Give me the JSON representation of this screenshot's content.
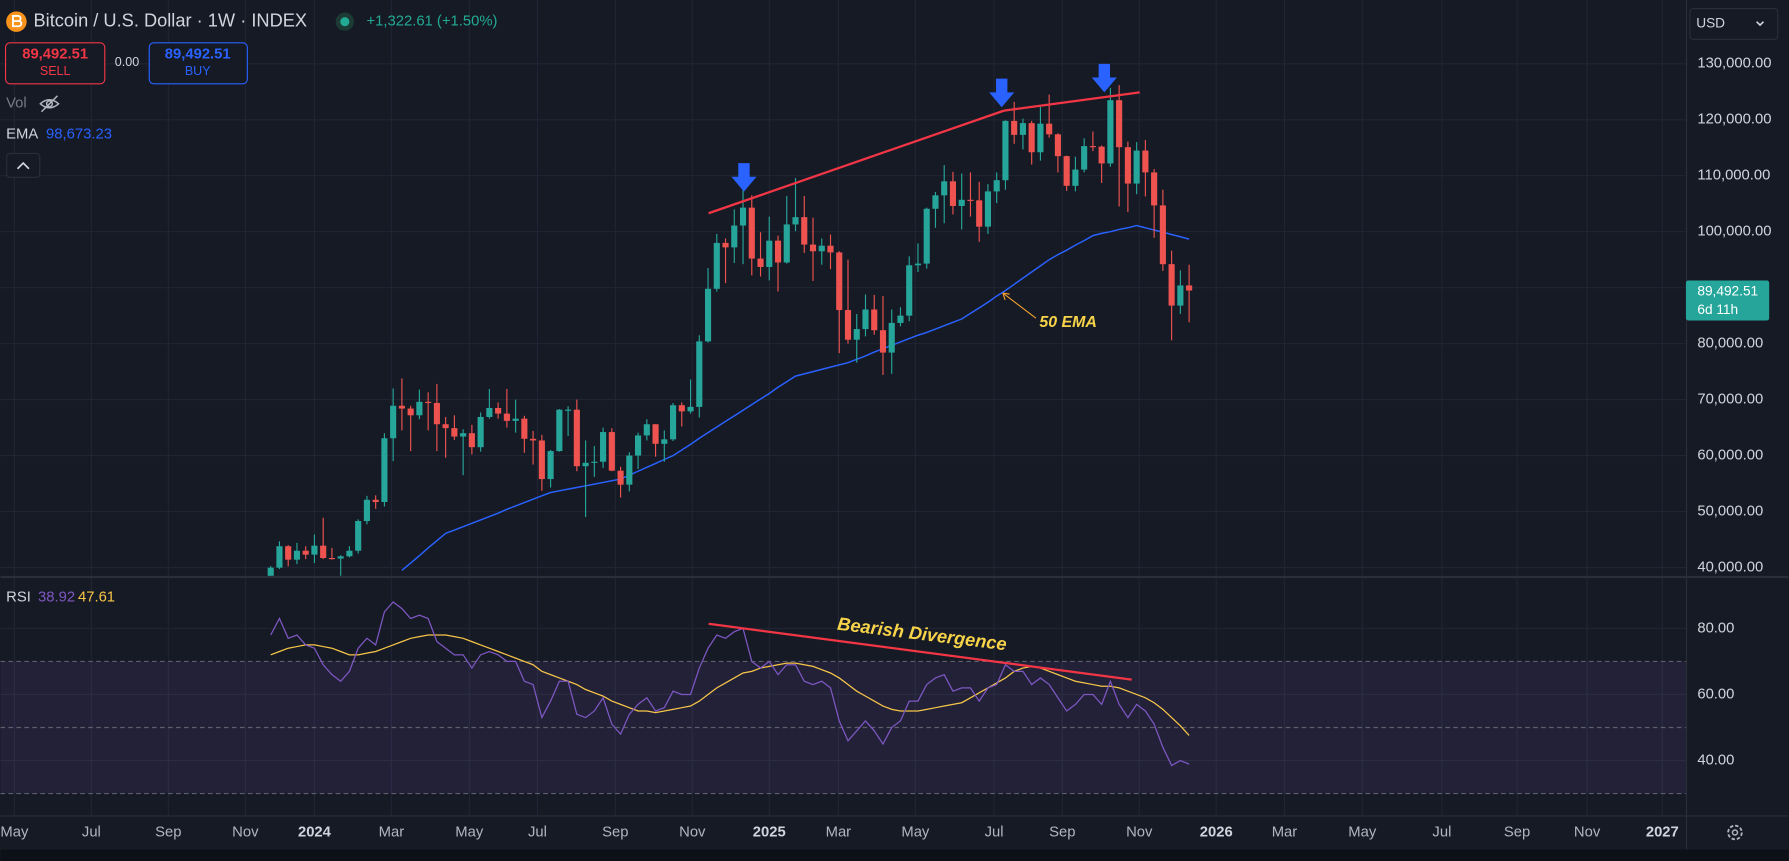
{
  "chart_data": [
    {
      "type": "candlestick",
      "title": "Bitcoin / U.S. Dollar · 1W · INDEX",
      "x": [
        0,
        1,
        2,
        3,
        4,
        5,
        6,
        7,
        8,
        9,
        10,
        11,
        12,
        13,
        14,
        15,
        16,
        17,
        18,
        19,
        20,
        21,
        22,
        23,
        24,
        25,
        26,
        27,
        28,
        29,
        30,
        31,
        32,
        33,
        34,
        35,
        36,
        37,
        38,
        39,
        40,
        41,
        42,
        43,
        44,
        45,
        46,
        47,
        48,
        49,
        50,
        51,
        52,
        53,
        54,
        55,
        56,
        57,
        58,
        59,
        60,
        61,
        62,
        63,
        64,
        65,
        66,
        67,
        68,
        69,
        70,
        71,
        72,
        73,
        74,
        75,
        76,
        77,
        78,
        79,
        80,
        81,
        82,
        83,
        84,
        85,
        86,
        87,
        88,
        89,
        90,
        91,
        92,
        93,
        94,
        95,
        96,
        97,
        98,
        99,
        100,
        101,
        102,
        103,
        104,
        105
      ],
      "open": [
        37450,
        39970,
        43800,
        41400,
        43000,
        42300,
        43900,
        41700,
        41600,
        42000,
        43000,
        48300,
        52100,
        51700,
        63100,
        68900,
        68400,
        67200,
        69600,
        69400,
        65600,
        64900,
        63400,
        64000,
        61500,
        66900,
        68500,
        67500,
        66200,
        66600,
        63000,
        62700,
        55800,
        60800,
        68200,
        68200,
        58100,
        58700,
        58900,
        64200,
        57300,
        54800,
        60000,
        63600,
        65600,
        62100,
        62900,
        69000,
        67900,
        68700,
        80400,
        89800,
        98000,
        97200,
        101100,
        104300,
        95200,
        93700,
        98400,
        94500,
        101300,
        102600,
        97700,
        96500,
        97500,
        96300,
        86000,
        80700,
        82600,
        86100,
        82400,
        78400,
        83700,
        85000,
        94000,
        94300,
        104100,
        106500,
        109000,
        104600,
        105700,
        105600,
        100900,
        107200,
        109200,
        119800,
        117300,
        119400,
        114200,
        119300,
        117400,
        113500,
        108200,
        111100,
        115300,
        115200,
        112200,
        123500,
        115100,
        108600,
        114500,
        110600,
        104700,
        94200,
        86800,
        90400
      ],
      "high": [
        40250,
        44700,
        44000,
        44400,
        43800,
        45900,
        48900,
        43500,
        42200,
        43800,
        48600,
        52800,
        52900,
        64000,
        72000,
        73800,
        68900,
        71800,
        71300,
        72800,
        66900,
        67200,
        64700,
        65500,
        67700,
        71900,
        69500,
        71900,
        70000,
        67100,
        64400,
        63700,
        61000,
        68300,
        68800,
        70000,
        62700,
        61700,
        65000,
        64900,
        58000,
        60600,
        64100,
        66500,
        65600,
        64500,
        69400,
        69500,
        73600,
        81500,
        93500,
        99600,
        98800,
        104000,
        108300,
        106500,
        99900,
        102700,
        99300,
        106400,
        109600,
        106400,
        102500,
        98800,
        99500,
        96500,
        95000,
        85300,
        88800,
        88700,
        88500,
        86100,
        86500,
        95600,
        97900,
        104300,
        107100,
        111900,
        110700,
        110400,
        110600,
        108900,
        108500,
        110600,
        119900,
        123200,
        120200,
        119800,
        122300,
        124500,
        117600,
        113600,
        113400,
        116700,
        117900,
        115400,
        125700,
        126200,
        116100,
        116000,
        116400,
        111200,
        107500,
        96600,
        93100,
        94100
      ],
      "low": [
        36900,
        39700,
        40200,
        40600,
        41500,
        40800,
        41500,
        41400,
        38500,
        41800,
        42500,
        47700,
        50500,
        50900,
        59000,
        64500,
        60800,
        66500,
        64500,
        60800,
        59600,
        62800,
        56500,
        60200,
        60700,
        66600,
        66600,
        65000,
        64100,
        60500,
        58400,
        53700,
        54300,
        60700,
        63500,
        57200,
        49000,
        56200,
        57800,
        57200,
        52500,
        53600,
        57600,
        62700,
        59800,
        58900,
        62600,
        65200,
        67500,
        66800,
        80200,
        89300,
        90800,
        94400,
        94200,
        92200,
        92000,
        91300,
        89300,
        94300,
        100100,
        96200,
        91200,
        94100,
        93300,
        78300,
        80000,
        76600,
        81300,
        81600,
        74400,
        74600,
        83100,
        84000,
        92800,
        93400,
        100700,
        101500,
        103100,
        100400,
        102700,
        98200,
        99600,
        105100,
        107500,
        115700,
        114700,
        112000,
        112700,
        116800,
        110600,
        107300,
        107200,
        110600,
        114400,
        108700,
        111600,
        104500,
        103500,
        106700,
        106300,
        98900,
        93000,
        80600,
        85300,
        83800
      ],
      "close": [
        39970,
        43800,
        41400,
        43000,
        42300,
        43900,
        41700,
        41600,
        42000,
        43000,
        48300,
        52100,
        51700,
        63100,
        68900,
        68400,
        67200,
        69600,
        69400,
        65600,
        64900,
        63400,
        64000,
        61500,
        66900,
        68500,
        67500,
        66200,
        66600,
        63000,
        62700,
        55800,
        60800,
        68200,
        68200,
        58100,
        58700,
        58900,
        64200,
        57300,
        54800,
        60000,
        63600,
        65600,
        62100,
        62900,
        69000,
        67900,
        68700,
        80400,
        89800,
        98000,
        97200,
        101100,
        104300,
        95200,
        93700,
        98400,
        94500,
        101300,
        102600,
        97700,
        96500,
        97500,
        96300,
        86000,
        80700,
        82600,
        86100,
        82400,
        78400,
        83700,
        85000,
        94000,
        94300,
        104100,
        106500,
        109000,
        104600,
        105700,
        105600,
        100900,
        107200,
        109200,
        119800,
        117300,
        119400,
        114200,
        119300,
        117400,
        113500,
        108200,
        111100,
        115300,
        115200,
        112200,
        123500,
        115100,
        108600,
        114500,
        110600,
        104700,
        94200,
        86800,
        90400,
        89492.51
      ],
      "up_color": "#26a69a",
      "down_color": "#ef5350",
      "series": [
        {
          "name": "EMA",
          "color": "#2962ff",
          "last_label": "98,673.23",
          "values": [
            null,
            null,
            null,
            null,
            null,
            null,
            null,
            null,
            null,
            null,
            null,
            null,
            null,
            null,
            null,
            39500,
            40800,
            42100,
            43500,
            44800,
            46100,
            46700,
            47300,
            47900,
            48500,
            49100,
            49700,
            50400,
            51000,
            51600,
            52200,
            52800,
            53400,
            53700,
            54000,
            54300,
            54600,
            54900,
            55200,
            55500,
            55800,
            56500,
            57200,
            57900,
            58600,
            59300,
            60000,
            61000,
            62000,
            63100,
            64100,
            65100,
            66100,
            67100,
            68100,
            69100,
            70100,
            71100,
            72200,
            73200,
            74200,
            74600,
            75000,
            75400,
            75800,
            76200,
            76600,
            77200,
            77800,
            78500,
            79100,
            79700,
            80300,
            80900,
            81500,
            82000,
            82600,
            83200,
            83800,
            84400,
            85400,
            86400,
            87400,
            88500,
            89500,
            90600,
            91700,
            92800,
            93900,
            95000,
            95900,
            96700,
            97600,
            98400,
            99300,
            99700,
            100000,
            100400,
            100700,
            101100,
            100700,
            100300,
            99900,
            99500,
            99100,
            98673.23
          ]
        }
      ],
      "xlim": [
        -30.9,
        161.8
      ],
      "ylim": [
        38500,
        141400
      ],
      "yticks": [
        {
          "value": 40000,
          "label": "40,000.00"
        },
        {
          "value": 50000,
          "label": "50,000.00"
        },
        {
          "value": 60000,
          "label": "60,000.00"
        },
        {
          "value": 70000,
          "label": "70,000.00"
        },
        {
          "value": 80000,
          "label": "80,000.00"
        },
        {
          "value": 90000,
          "label": "90,000.00"
        },
        {
          "value": 100000,
          "label": "100,000.00"
        },
        {
          "value": 110000,
          "label": "110,000.00"
        },
        {
          "value": 120000,
          "label": "120,000.00"
        },
        {
          "value": 130000,
          "label": "130,000.00"
        }
      ],
      "grid": true,
      "annotations": [
        "50 EMA"
      ]
    },
    {
      "type": "line",
      "title": "RSI",
      "x": [
        0,
        1,
        2,
        3,
        4,
        5,
        6,
        7,
        8,
        9,
        10,
        11,
        12,
        13,
        14,
        15,
        16,
        17,
        18,
        19,
        20,
        21,
        22,
        23,
        24,
        25,
        26,
        27,
        28,
        29,
        30,
        31,
        32,
        33,
        34,
        35,
        36,
        37,
        38,
        39,
        40,
        41,
        42,
        43,
        44,
        45,
        46,
        47,
        48,
        49,
        50,
        51,
        52,
        53,
        54,
        55,
        56,
        57,
        58,
        59,
        60,
        61,
        62,
        63,
        64,
        65,
        66,
        67,
        68,
        69,
        70,
        71,
        72,
        73,
        74,
        75,
        76,
        77,
        78,
        79,
        80,
        81,
        82,
        83,
        84,
        85,
        86,
        87,
        88,
        89,
        90,
        91,
        92,
        93,
        94,
        95,
        96,
        97,
        98,
        99,
        100,
        101,
        102,
        103,
        104,
        105
      ],
      "series": [
        {
          "color": "#7e57c2",
          "last_label": "38.92",
          "values": [
            78,
            83,
            77,
            78,
            75,
            74,
            69,
            66,
            64,
            67,
            74,
            77,
            75,
            85,
            88,
            86,
            83,
            84,
            83,
            76,
            74,
            72,
            72,
            68,
            72,
            73,
            72,
            70,
            70,
            64,
            63,
            53,
            58,
            64,
            64,
            54,
            53,
            55,
            59,
            51,
            48,
            54,
            57,
            59,
            55,
            56,
            61,
            60,
            60,
            68,
            74,
            78,
            77,
            79,
            80,
            70,
            68,
            70,
            66,
            69,
            69,
            64,
            63,
            64,
            62,
            52,
            46,
            49,
            52,
            49,
            45,
            50,
            52,
            58,
            58,
            63,
            65,
            66,
            61,
            62,
            62,
            58,
            62,
            63,
            69,
            67,
            67,
            63,
            65,
            63,
            59,
            55,
            57,
            60,
            60,
            57,
            64,
            57,
            53,
            57,
            55,
            51,
            44,
            38.5,
            40,
            38.92
          ]
        },
        {
          "color": "#f7c548",
          "last_label": "47.61",
          "values": [
            72,
            73,
            74,
            74.5,
            75,
            75,
            74.5,
            74,
            73,
            72,
            72,
            72.5,
            73,
            74,
            75,
            76,
            77,
            77.5,
            78,
            78,
            78,
            77.5,
            77,
            76,
            75,
            74,
            73,
            72,
            71,
            70,
            69,
            67,
            66,
            65,
            64,
            63,
            61.5,
            60.5,
            59.5,
            58,
            57,
            56,
            55,
            55,
            54.5,
            55,
            55.5,
            56,
            56.5,
            58,
            60,
            62,
            63.5,
            65,
            66.5,
            67,
            68,
            68.5,
            69,
            69.5,
            69.5,
            69,
            68.5,
            67.5,
            66.5,
            65,
            63,
            61,
            59.5,
            58,
            56.5,
            55.5,
            55,
            55,
            55,
            55.5,
            56,
            56.5,
            57,
            57.5,
            59,
            60.5,
            62,
            63.5,
            65,
            67,
            68,
            68.5,
            68,
            67,
            66,
            65,
            64,
            63.5,
            63,
            62.5,
            62.5,
            62,
            61,
            60,
            59,
            57.5,
            55.5,
            53,
            50.5,
            47.61
          ]
        }
      ],
      "levels": [
        70,
        50,
        30
      ],
      "xlim": [
        -30.9,
        161.8
      ],
      "ylim": [
        23.4,
        95.2
      ],
      "yticks": [
        {
          "value": 40,
          "label": "40.00"
        },
        {
          "value": 60,
          "label": "60.00"
        },
        {
          "value": 80,
          "label": "80.00"
        }
      ],
      "xticks": [
        {
          "value": -29.3,
          "label": "May"
        },
        {
          "value": -20.5,
          "label": "Jul"
        },
        {
          "value": -11.7,
          "label": "Sep"
        },
        {
          "value": -2.9,
          "label": "Nov"
        },
        {
          "value": 5.0,
          "label": "2024"
        },
        {
          "value": 13.8,
          "label": "Mar"
        },
        {
          "value": 22.7,
          "label": "May"
        },
        {
          "value": 30.5,
          "label": "Jul"
        },
        {
          "value": 39.4,
          "label": "Sep"
        },
        {
          "value": 48.2,
          "label": "Nov"
        },
        {
          "value": 57.0,
          "label": "2025"
        },
        {
          "value": 64.9,
          "label": "Mar"
        },
        {
          "value": 73.7,
          "label": "May"
        },
        {
          "value": 82.7,
          "label": "Jul"
        },
        {
          "value": 90.5,
          "label": "Sep"
        },
        {
          "value": 99.3,
          "label": "Nov"
        },
        {
          "value": 108.1,
          "label": "2026"
        },
        {
          "value": 115.9,
          "label": "Mar"
        },
        {
          "value": 124.8,
          "label": "May"
        },
        {
          "value": 133.9,
          "label": "Jul"
        },
        {
          "value": 142.5,
          "label": "Sep"
        },
        {
          "value": 150.5,
          "label": "Nov"
        },
        {
          "value": 159.1,
          "label": "2027"
        }
      ],
      "grid": true,
      "annotations": [
        "Bearish Divergence"
      ]
    }
  ],
  "toolbar": {
    "change": "+1,322.61 (+1.50%)",
    "sell_price": "89,492.51",
    "sell": "SELL",
    "spread": "0.00",
    "buy_price": "89,492.51",
    "buy": "BUY",
    "vol": "Vol",
    "currency": "USD",
    "price_tag": "89,492.51",
    "countdown": "6d 11h"
  }
}
